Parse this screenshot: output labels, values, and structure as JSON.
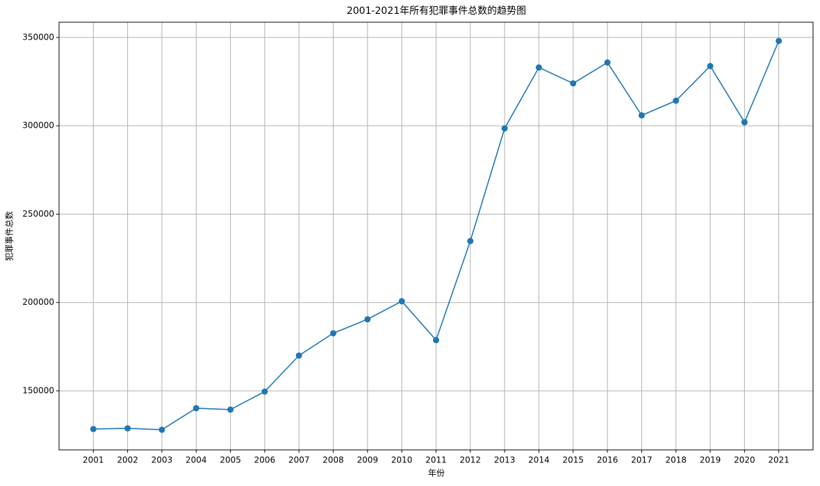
{
  "chart_data": {
    "type": "line",
    "title": "2001-2021年所有犯罪事件总数的趋势图",
    "x_label": "年份",
    "y_label": "犯罪事件总数",
    "x": [
      2001,
      2002,
      2003,
      2004,
      2005,
      2006,
      2007,
      2008,
      2009,
      2010,
      2011,
      2012,
      2013,
      2014,
      2015,
      2016,
      2017,
      2018,
      2019,
      2020,
      2021
    ],
    "series": [
      {
        "color": "#1f77b4",
        "values": [
          128400,
          128800,
          128000,
          140200,
          139400,
          149600,
          170000,
          182600,
          190500,
          200700,
          178700,
          234800,
          298500,
          333000,
          324000,
          335800,
          305900,
          314200,
          333800,
          302000,
          348000
        ]
      }
    ],
    "xlim": [
      2000,
      2022
    ],
    "xticks": [
      2001,
      2002,
      2003,
      2004,
      2005,
      2006,
      2007,
      2008,
      2009,
      2010,
      2011,
      2012,
      2013,
      2014,
      2015,
      2016,
      2017,
      2018,
      2019,
      2020,
      2021
    ],
    "ylim": [
      116600,
      358600
    ],
    "yticks": [
      150000,
      200000,
      250000,
      300000,
      350000
    ],
    "grid": true,
    "marker": "circle"
  }
}
